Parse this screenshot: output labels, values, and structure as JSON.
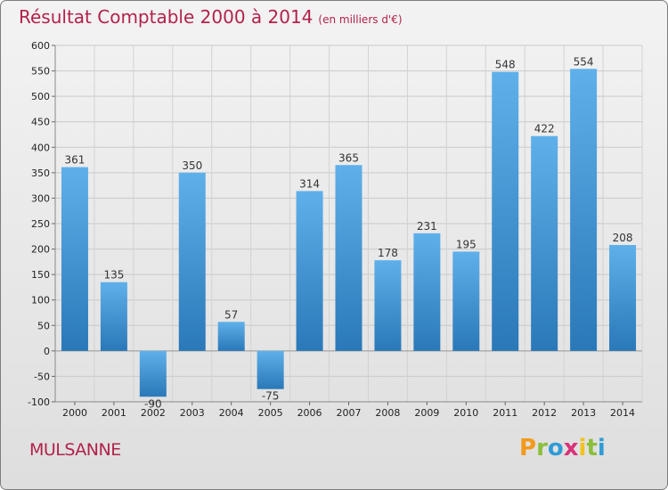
{
  "header": {
    "title": "Résultat Comptable 2000 à 2014",
    "subtitle": "(en milliers d'€)"
  },
  "footer": {
    "city": "MULSANNE",
    "logo": {
      "letters": [
        "P",
        "r",
        "o",
        "x",
        "i",
        "t",
        "i"
      ],
      "colors": [
        "#f39a1c",
        "#8bbf3a",
        "#2f9bd6",
        "#d9327a",
        "#f3c21c",
        "#8bbf3a",
        "#2f9bd6"
      ]
    }
  },
  "chart_data": {
    "type": "bar",
    "title": "Résultat Comptable 2000 à 2014",
    "subtitle": "(en milliers d'€)",
    "xlabel": "",
    "ylabel": "",
    "categories": [
      "2000",
      "2001",
      "2002",
      "2003",
      "2004",
      "2005",
      "2006",
      "2007",
      "2008",
      "2009",
      "2010",
      "2011",
      "2012",
      "2013",
      "2014"
    ],
    "values": [
      361,
      135,
      -90,
      350,
      57,
      -75,
      314,
      365,
      178,
      231,
      195,
      548,
      422,
      554,
      208
    ],
    "ylim": [
      -100,
      600
    ],
    "yticks": [
      -100,
      -50,
      0,
      50,
      100,
      150,
      200,
      250,
      300,
      350,
      400,
      450,
      500,
      550,
      600
    ],
    "grid": true,
    "bar_color": "#3a8fd0"
  }
}
